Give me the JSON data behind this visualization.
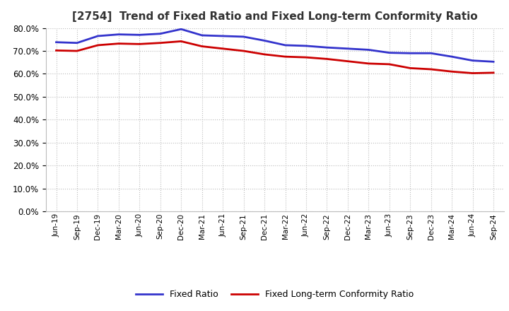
{
  "title": "[2754]  Trend of Fixed Ratio and Fixed Long-term Conformity Ratio",
  "x_labels": [
    "Jun-19",
    "Sep-19",
    "Dec-19",
    "Mar-20",
    "Jun-20",
    "Sep-20",
    "Dec-20",
    "Mar-21",
    "Jun-21",
    "Sep-21",
    "Dec-21",
    "Mar-22",
    "Jun-22",
    "Sep-22",
    "Dec-22",
    "Mar-23",
    "Jun-23",
    "Sep-23",
    "Dec-23",
    "Mar-24",
    "Jun-24",
    "Sep-24"
  ],
  "fixed_ratio": [
    73.8,
    73.5,
    76.5,
    77.2,
    77.0,
    77.5,
    79.5,
    76.8,
    76.5,
    76.2,
    74.5,
    72.5,
    72.2,
    71.5,
    71.0,
    70.5,
    69.2,
    69.0,
    69.0,
    67.5,
    65.8,
    65.3
  ],
  "fixed_lt_ratio": [
    70.2,
    70.0,
    72.5,
    73.2,
    73.0,
    73.5,
    74.2,
    72.0,
    71.0,
    70.0,
    68.5,
    67.5,
    67.2,
    66.5,
    65.5,
    64.5,
    64.2,
    62.5,
    62.0,
    61.0,
    60.3,
    60.5
  ],
  "fixed_ratio_color": "#3333cc",
  "fixed_lt_ratio_color": "#cc0000",
  "ylim": [
    0,
    80
  ],
  "ytick_step": 10,
  "background_color": "#ffffff",
  "grid_color": "#aaaaaa",
  "title_fontsize": 11,
  "legend_fixed_ratio": "Fixed Ratio",
  "legend_fixed_lt_ratio": "Fixed Long-term Conformity Ratio"
}
